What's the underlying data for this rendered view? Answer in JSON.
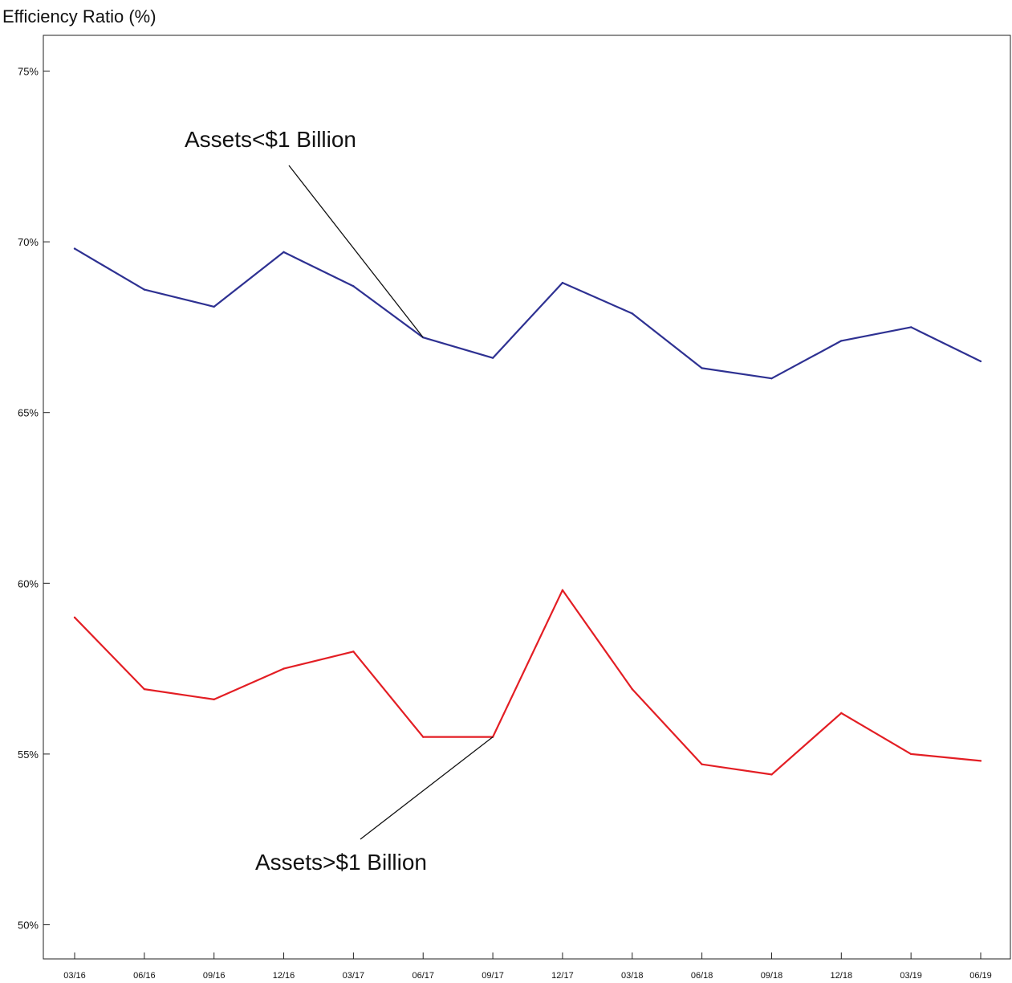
{
  "chart_data": {
    "type": "line",
    "title": "Efficiency Ratio (%)",
    "xlabel": "",
    "ylabel": "",
    "ylim": [
      49,
      77
    ],
    "yticks": [
      50,
      55,
      60,
      65,
      70,
      75
    ],
    "ytick_labels": [
      "50%",
      "55%",
      "60%",
      "65%",
      "70%",
      "75%"
    ],
    "categories": [
      "03/16",
      "06/16",
      "09/16",
      "12/16",
      "03/17",
      "06/17",
      "09/17",
      "12/17",
      "03/18",
      "06/18",
      "09/18",
      "12/18",
      "03/19",
      "06/19"
    ],
    "grid": false,
    "legend": "none",
    "series": [
      {
        "name": "Assets<$1 Billion",
        "color": "#2e3192",
        "values": [
          69.8,
          68.6,
          68.1,
          69.7,
          68.7,
          67.2,
          66.6,
          68.8,
          67.9,
          66.3,
          66.0,
          67.1,
          67.5,
          66.5
        ]
      },
      {
        "name": "Assets>$1 Billion",
        "color": "#e31e24",
        "values": [
          59.0,
          56.9,
          56.6,
          57.5,
          58.0,
          55.5,
          55.5,
          59.8,
          56.9,
          54.7,
          54.4,
          56.2,
          55.0,
          54.8
        ]
      }
    ],
    "annotations": [
      {
        "text": "Assets<$1 Billion",
        "series": 0,
        "point_index": 5
      },
      {
        "text": "Assets>$1 Billion",
        "series": 1,
        "point_index": 6
      }
    ]
  }
}
